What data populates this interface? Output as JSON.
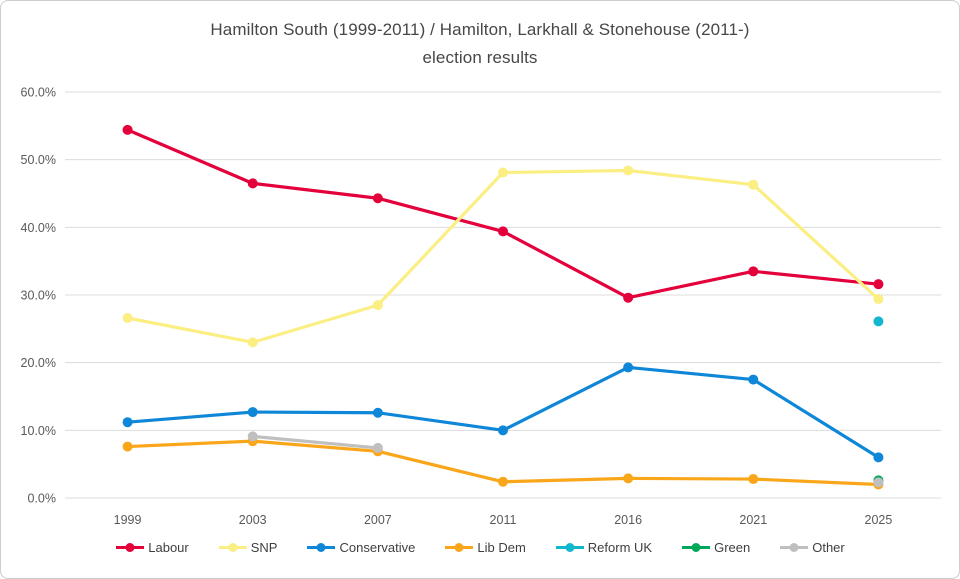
{
  "title": {
    "line1": "Hamilton South (1999-2011) / Hamilton, Larkhall & Stonehouse (2011-)",
    "line2": "election results"
  },
  "chart_data": {
    "type": "line",
    "title": "Hamilton South (1999-2011) / Hamilton, Larkhall & Stonehouse (2011-) election results",
    "categories": [
      "1999",
      "2003",
      "2007",
      "2011",
      "2016",
      "2021",
      "2025"
    ],
    "y_ticks": [
      "0.0%",
      "10.0%",
      "20.0%",
      "30.0%",
      "40.0%",
      "50.0%",
      "60.0%"
    ],
    "ylim": [
      0,
      60
    ],
    "grid": "horizontal",
    "legend_position": "bottom",
    "xlabel": "",
    "ylabel": "",
    "series": [
      {
        "name": "Labour",
        "color": "#e4003b",
        "values": [
          54.4,
          46.5,
          44.3,
          39.4,
          29.6,
          33.5,
          31.6
        ]
      },
      {
        "name": "SNP",
        "color": "#fbee83",
        "values": [
          26.6,
          23.0,
          28.5,
          48.1,
          48.4,
          46.3,
          29.4
        ]
      },
      {
        "name": "Conservative",
        "color": "#0f87d8",
        "values": [
          11.2,
          12.7,
          12.6,
          10.0,
          19.3,
          17.5,
          6.0
        ]
      },
      {
        "name": "Lib Dem",
        "color": "#faa61a",
        "values": [
          7.6,
          8.4,
          6.9,
          2.4,
          2.9,
          2.8,
          2.0
        ]
      },
      {
        "name": "Reform UK",
        "color": "#12b6cf",
        "values": [
          null,
          null,
          null,
          null,
          null,
          null,
          26.1
        ]
      },
      {
        "name": "Green",
        "color": "#00a65a",
        "values": [
          null,
          null,
          null,
          null,
          null,
          null,
          2.6
        ]
      },
      {
        "name": "Other",
        "color": "#bfbfbf",
        "values": [
          null,
          9.1,
          7.4,
          null,
          null,
          null,
          2.3
        ]
      }
    ],
    "style": {
      "gridline_color": "#dcdcdc",
      "axis_text_color": "#595959",
      "title_color": "#474747"
    }
  }
}
